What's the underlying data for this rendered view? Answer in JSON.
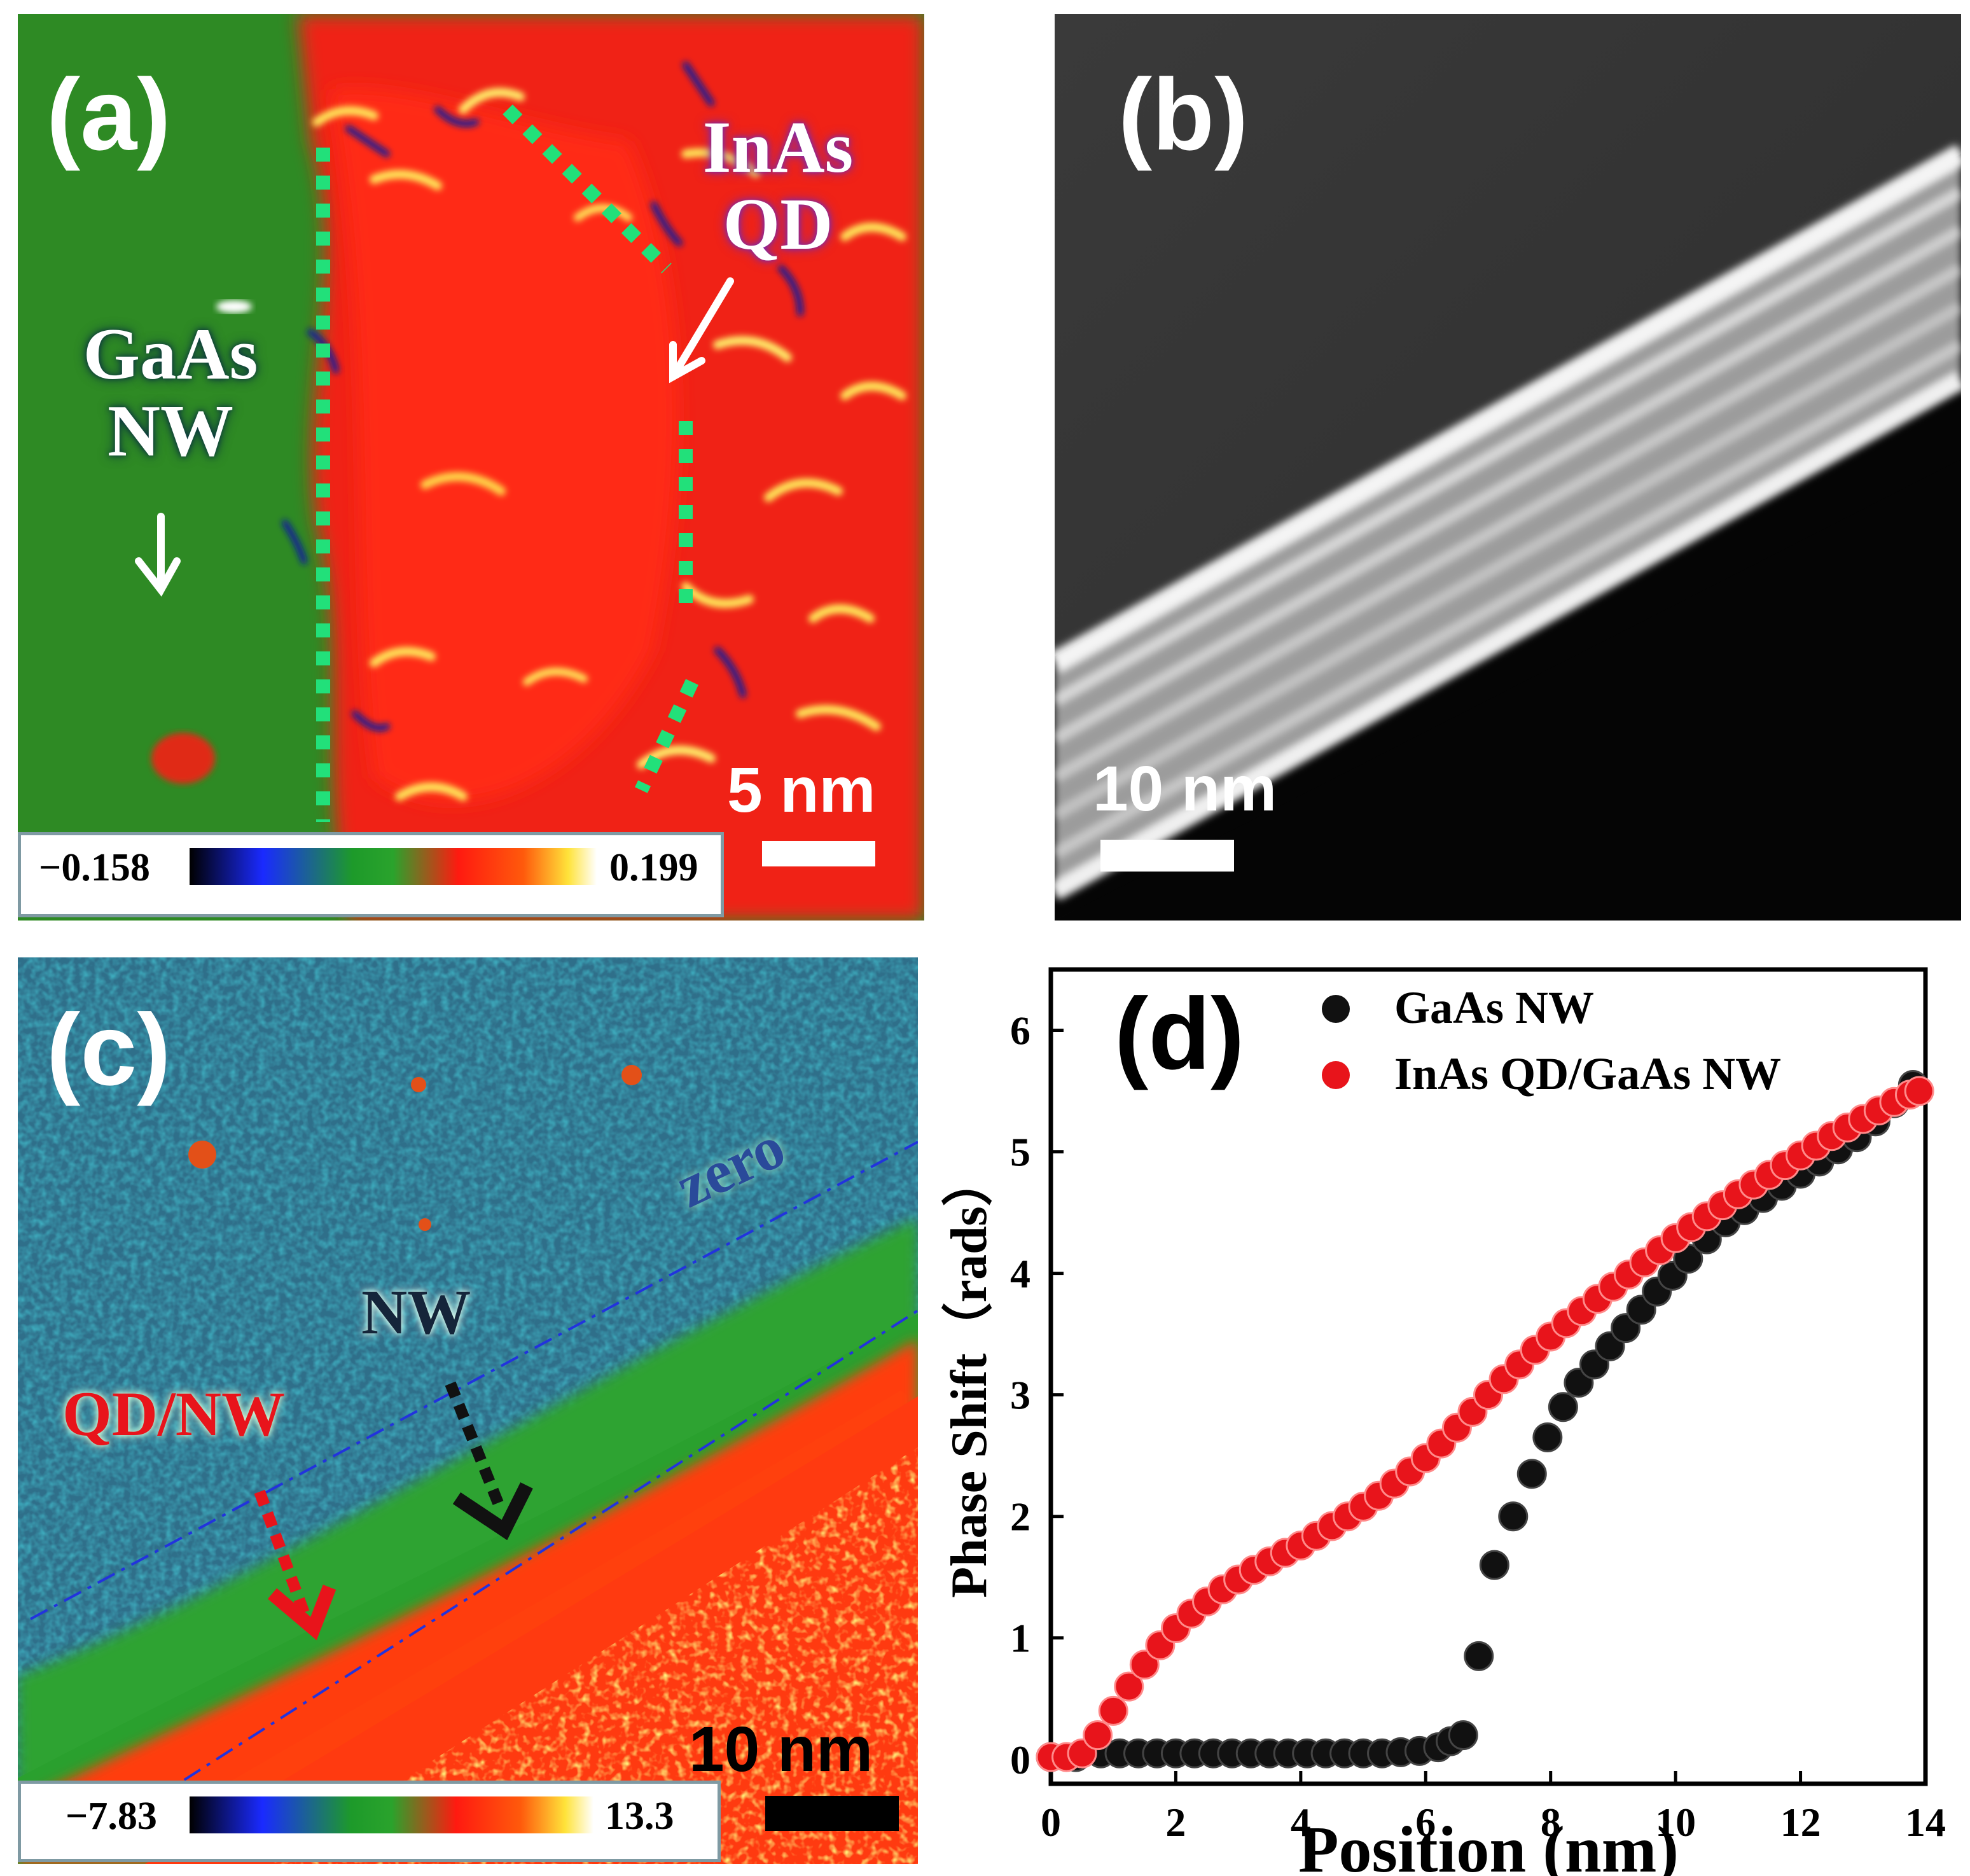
{
  "panel_a": {
    "label": "(a)",
    "material_label_1": "InAs",
    "material_label_2": "QD",
    "nw_label_1": "GaAs",
    "nw_label_2": "NW",
    "scale_label": "5 nm",
    "colorbar_min": "−0.158",
    "colorbar_max": "0.199"
  },
  "panel_b": {
    "label": "(b)",
    "scale_label": "10 nm"
  },
  "panel_c": {
    "label": "(c)",
    "region_zero": "zero",
    "region_nw": "NW",
    "region_qdnw": "QD/NW",
    "scale_label": "10 nm",
    "colorbar_min": "−7.83",
    "colorbar_max": "13.3"
  },
  "panel_d": {
    "label": "(d)"
  },
  "chart_data": {
    "type": "scatter",
    "xlabel": "Position (nm)",
    "ylabel": "Phase Shift（rads）",
    "xlim": [
      0,
      14
    ],
    "ylim": [
      -0.2,
      6.5
    ],
    "xticks": [
      "0",
      "2",
      "4",
      "6",
      "8",
      "10",
      "12",
      "14"
    ],
    "yticks": [
      "0",
      "1",
      "2",
      "3",
      "4",
      "5",
      "6"
    ],
    "series": [
      {
        "name": "GaAs NW",
        "color": "#111111",
        "x": [
          0,
          0.4,
          0.8,
          1.1,
          1.4,
          1.7,
          2.0,
          2.3,
          2.6,
          2.9,
          3.2,
          3.5,
          3.8,
          4.1,
          4.4,
          4.7,
          5.0,
          5.3,
          5.6,
          5.9,
          6.2,
          6.4,
          6.6,
          6.85,
          7.1,
          7.4,
          7.7,
          7.95,
          8.2,
          8.45,
          8.7,
          8.95,
          9.2,
          9.45,
          9.7,
          9.95,
          10.2,
          10.5,
          10.8,
          11.1,
          11.4,
          11.7,
          12.0,
          12.3,
          12.6,
          12.9,
          13.2,
          13.5,
          13.8
        ],
        "y": [
          0.02,
          0.02,
          0.05,
          0.05,
          0.05,
          0.05,
          0.05,
          0.05,
          0.05,
          0.05,
          0.05,
          0.05,
          0.05,
          0.05,
          0.05,
          0.05,
          0.05,
          0.05,
          0.06,
          0.07,
          0.1,
          0.15,
          0.2,
          0.85,
          1.6,
          2.0,
          2.35,
          2.65,
          2.9,
          3.1,
          3.25,
          3.4,
          3.55,
          3.7,
          3.85,
          3.98,
          4.12,
          4.28,
          4.42,
          4.52,
          4.62,
          4.72,
          4.82,
          4.92,
          5.02,
          5.12,
          5.25,
          5.4,
          5.55
        ]
      },
      {
        "name": "InAs QD/GaAs NW",
        "color": "#e8141b",
        "x": [
          0,
          0.25,
          0.5,
          0.75,
          1.0,
          1.25,
          1.5,
          1.75,
          2.0,
          2.25,
          2.5,
          2.75,
          3.0,
          3.25,
          3.5,
          3.75,
          4.0,
          4.25,
          4.5,
          4.75,
          5.0,
          5.25,
          5.5,
          5.75,
          6.0,
          6.25,
          6.5,
          6.75,
          7.0,
          7.25,
          7.5,
          7.75,
          8.0,
          8.25,
          8.5,
          8.75,
          9.0,
          9.25,
          9.5,
          9.75,
          10.0,
          10.25,
          10.5,
          10.75,
          11.0,
          11.25,
          11.5,
          11.75,
          12.0,
          12.25,
          12.5,
          12.75,
          13.0,
          13.25,
          13.5,
          13.75,
          13.9
        ],
        "y": [
          0.02,
          0.02,
          0.05,
          0.2,
          0.4,
          0.6,
          0.78,
          0.94,
          1.08,
          1.2,
          1.3,
          1.4,
          1.48,
          1.56,
          1.63,
          1.7,
          1.76,
          1.84,
          1.92,
          2.0,
          2.08,
          2.17,
          2.27,
          2.37,
          2.48,
          2.6,
          2.73,
          2.86,
          3.0,
          3.13,
          3.25,
          3.37,
          3.48,
          3.59,
          3.69,
          3.79,
          3.89,
          3.99,
          4.09,
          4.19,
          4.29,
          4.38,
          4.47,
          4.56,
          4.65,
          4.73,
          4.81,
          4.89,
          4.97,
          5.05,
          5.13,
          5.2,
          5.27,
          5.34,
          5.41,
          5.47,
          5.5
        ]
      }
    ]
  }
}
